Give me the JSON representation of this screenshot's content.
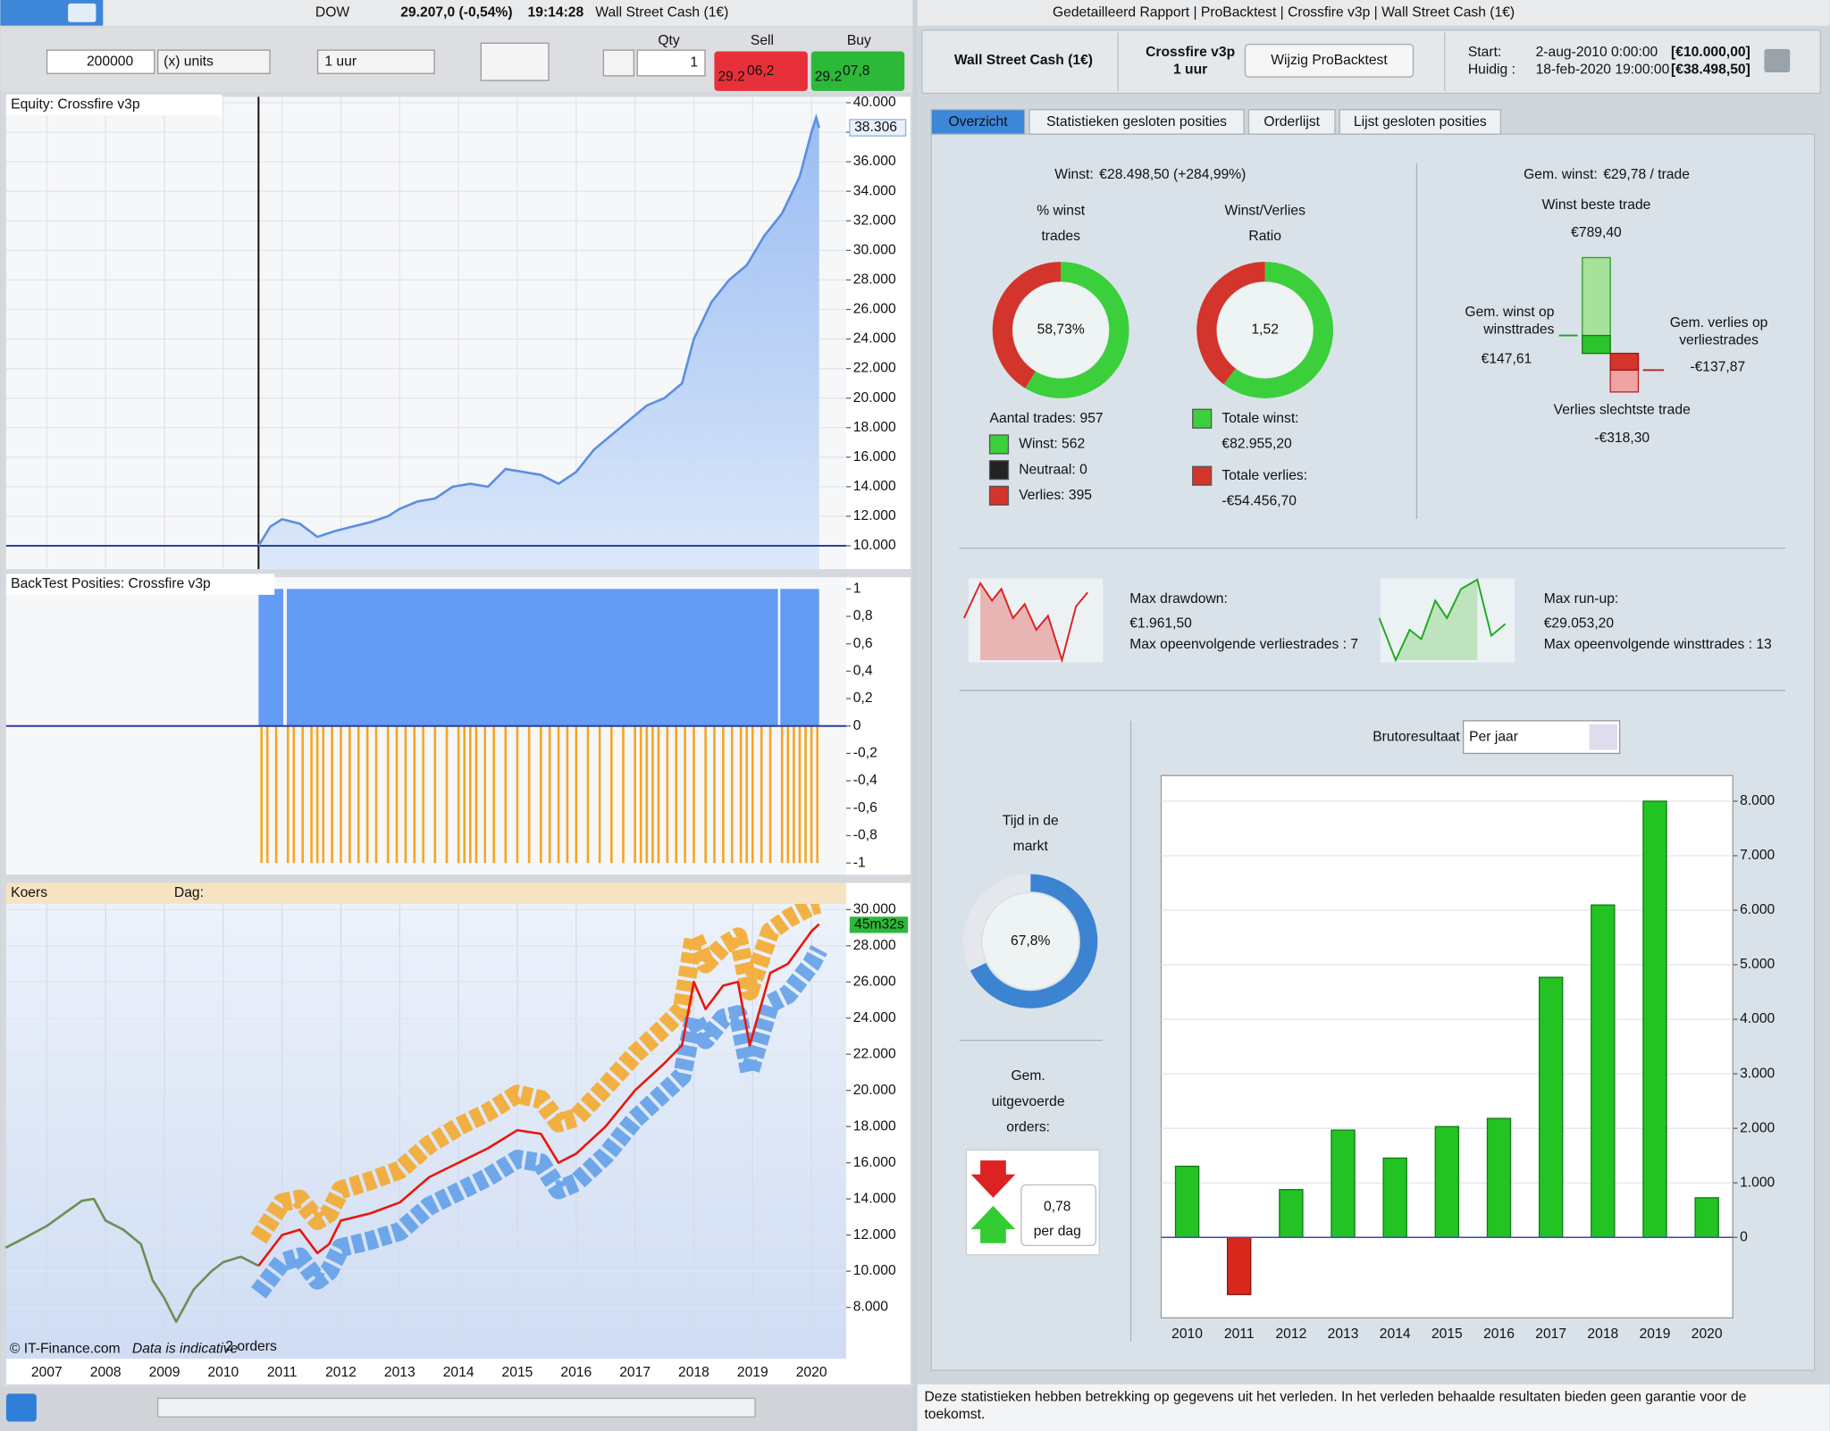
{
  "toolbar": {
    "instrument": "DOW",
    "price": "29.207,0 (-0,54%)",
    "time": "19:14:28",
    "market": "Wall Street Cash (1€)",
    "units": "200000",
    "units_mode": "(x) units",
    "timeframe": "1 uur",
    "qty_label": "Qty",
    "qty": "1",
    "sell_label": "Sell",
    "buy_label": "Buy",
    "sell_small": "29.2",
    "sell_price": "06,2",
    "buy_small": "29.2",
    "buy_price": "07,8"
  },
  "chart_data": [
    {
      "type": "area",
      "title": "Equity: Crossfire v3p",
      "x": [
        2010.6,
        2010.8,
        2011.0,
        2011.3,
        2011.6,
        2011.9,
        2012.2,
        2012.5,
        2012.8,
        2013.0,
        2013.3,
        2013.6,
        2013.9,
        2014.2,
        2014.5,
        2014.8,
        2015.1,
        2015.4,
        2015.7,
        2016.0,
        2016.3,
        2016.6,
        2016.9,
        2017.2,
        2017.5,
        2017.8,
        2018.0,
        2018.3,
        2018.6,
        2018.9,
        2019.2,
        2019.5,
        2019.8,
        2020.0,
        2020.08,
        2020.13
      ],
      "values": [
        10000,
        11300,
        11800,
        11500,
        10600,
        11000,
        11300,
        11600,
        12000,
        12500,
        13000,
        13200,
        14000,
        14200,
        14000,
        15200,
        15000,
        14800,
        14200,
        15000,
        16500,
        17500,
        18500,
        19500,
        20000,
        21000,
        24000,
        26500,
        28000,
        29000,
        31000,
        32500,
        35000,
        38000,
        39000,
        38306
      ],
      "last_value_label": "38.306",
      "color": "#5b8fe0",
      "xlim": [
        2006.31,
        2020.59
      ],
      "ylim": [
        8420,
        40400
      ],
      "yticks": [
        {
          "value": 10000,
          "label": "10.000"
        },
        {
          "value": 12000,
          "label": "12.000"
        },
        {
          "value": 14000,
          "label": "14.000"
        },
        {
          "value": 16000,
          "label": "16.000"
        },
        {
          "value": 18000,
          "label": "18.000"
        },
        {
          "value": 20000,
          "label": "20.000"
        },
        {
          "value": 22000,
          "label": "22.000"
        },
        {
          "value": 24000,
          "label": "24.000"
        },
        {
          "value": 26000,
          "label": "26.000"
        },
        {
          "value": 28000,
          "label": "28.000"
        },
        {
          "value": 30000,
          "label": "30.000"
        },
        {
          "value": 32000,
          "label": "32.000"
        },
        {
          "value": 34000,
          "label": "34.000"
        },
        {
          "value": 36000,
          "label": "36.000"
        },
        {
          "value": 38000,
          "label": "38.000"
        },
        {
          "value": 40000,
          "label": "40.000"
        }
      ]
    },
    {
      "type": "positions",
      "title": "BackTest Posities: Crossfire v3p",
      "long": [
        [
          2010.6,
          2011.02
        ],
        [
          2011.08,
          2019.43
        ],
        [
          2019.47,
          2020.13
        ]
      ],
      "long_value": 1,
      "long_color": "#649bf5",
      "short_x": [
        2010.65,
        2010.75,
        2010.9,
        2011.1,
        2011.2,
        2011.35,
        2011.5,
        2011.6,
        2011.7,
        2011.85,
        2012.0,
        2012.15,
        2012.3,
        2012.45,
        2012.6,
        2012.8,
        2012.95,
        2013.1,
        2013.25,
        2013.4,
        2013.6,
        2013.8,
        2014.0,
        2014.1,
        2014.2,
        2014.3,
        2014.45,
        2014.6,
        2014.8,
        2015.0,
        2015.2,
        2015.4,
        2015.55,
        2015.7,
        2015.85,
        2016.0,
        2016.2,
        2016.4,
        2016.6,
        2016.8,
        2017.0,
        2017.1,
        2017.2,
        2017.3,
        2017.4,
        2017.55,
        2017.7,
        2017.85,
        2018.0,
        2018.2,
        2018.35,
        2018.5,
        2018.65,
        2018.8,
        2018.9,
        2019.0,
        2019.15,
        2019.3,
        2019.5,
        2019.6,
        2019.7,
        2019.8,
        2019.9,
        2020.0,
        2020.1
      ],
      "short_value": -1,
      "short_color": "#f5a623",
      "xlim": [
        2006.31,
        2020.59
      ],
      "ylim": [
        -1.085,
        1.085
      ],
      "yticks": [
        1,
        {
          "value": 0.8,
          "label": "0,8"
        },
        {
          "value": 0.6,
          "label": "0,6"
        },
        {
          "value": 0.4,
          "label": "0,4"
        },
        {
          "value": 0.2,
          "label": "0,2"
        },
        0,
        {
          "value": -0.2,
          "label": "-0,2"
        },
        {
          "value": -0.4,
          "label": "-0,4"
        },
        {
          "value": -0.6,
          "label": "-0,6"
        },
        {
          "value": -0.8,
          "label": "-0,8"
        },
        -1
      ]
    },
    {
      "type": "line",
      "title": "Koers",
      "day_label": "Dag:",
      "timer": "45m32s",
      "copyright": "© IT-Finance.com",
      "disclaimer": "Data is indicative",
      "orders": "2 orders",
      "x": [
        2006.3,
        2006.6,
        2007.0,
        2007.3,
        2007.6,
        2007.8,
        2008.0,
        2008.3,
        2008.6,
        2008.8,
        2009.0,
        2009.2,
        2009.5,
        2009.8,
        2010.0,
        2010.3,
        2010.6,
        2011.0,
        2011.3,
        2011.6,
        2011.8,
        2012.0,
        2012.5,
        2013.0,
        2013.5,
        2014.0,
        2014.5,
        2015.0,
        2015.4,
        2015.7,
        2016.0,
        2016.5,
        2017.0,
        2017.5,
        2017.8,
        2018.0,
        2018.2,
        2018.5,
        2018.75,
        2018.95,
        2019.3,
        2019.6,
        2020.0,
        2020.13
      ],
      "series": [
        {
          "color": "#f5a623",
          "values": [
            null,
            null,
            null,
            null,
            null,
            null,
            null,
            null,
            null,
            null,
            null,
            null,
            null,
            null,
            null,
            null,
            11800,
            13800,
            14000,
            12800,
            13200,
            14500,
            15000,
            15600,
            17000,
            18000,
            18800,
            19800,
            19500,
            18200,
            18500,
            20200,
            22000,
            23500,
            24500,
            28500,
            27000,
            28000,
            28500,
            25500,
            28800,
            29500,
            30200,
            30300
          ]
        },
        {
          "color": "#5b9be8",
          "values": [
            null,
            null,
            null,
            null,
            null,
            null,
            null,
            null,
            null,
            null,
            null,
            null,
            null,
            null,
            null,
            null,
            8800,
            10500,
            10800,
            9500,
            10000,
            11300,
            11700,
            12200,
            13600,
            14400,
            15200,
            16200,
            16000,
            14500,
            14900,
            16400,
            18400,
            19900,
            20800,
            24000,
            22800,
            24000,
            24200,
            21000,
            24800,
            25300,
            27000,
            27800
          ]
        },
        {
          "color": "#6a8f55",
          "values": [
            11300,
            11800,
            12500,
            13200,
            13900,
            14000,
            12800,
            12300,
            11500,
            9500,
            8500,
            7200,
            9000,
            10000,
            10500,
            10800,
            10300,
            null,
            null,
            null,
            null,
            null,
            null,
            null,
            null,
            null,
            null,
            null,
            null,
            null,
            null,
            null,
            null,
            null,
            null,
            null,
            null,
            null,
            null,
            null,
            null,
            null,
            null,
            null
          ]
        },
        {
          "color": "#e8170c",
          "values": [
            null,
            null,
            null,
            null,
            null,
            null,
            null,
            null,
            null,
            null,
            null,
            null,
            null,
            null,
            null,
            null,
            10300,
            12000,
            12300,
            11000,
            11500,
            12800,
            13200,
            13800,
            15200,
            16000,
            16800,
            17800,
            17600,
            16000,
            16500,
            18000,
            20000,
            21500,
            22500,
            26000,
            24500,
            25800,
            26000,
            22500,
            26500,
            27000,
            28800,
            29200
          ]
        }
      ],
      "xlim": [
        2006.31,
        2020.59
      ],
      "ylim": [
        5161,
        30320
      ],
      "xticks": [
        2007,
        2008,
        2009,
        2010,
        2011,
        2012,
        2013,
        2014,
        2015,
        2016,
        2017,
        2018,
        2019,
        2020
      ],
      "yticks": [
        {
          "value": 8000,
          "label": "8.000"
        },
        {
          "value": 10000,
          "label": "10.000"
        },
        {
          "value": 12000,
          "label": "12.000"
        },
        {
          "value": 14000,
          "label": "14.000"
        },
        {
          "value": 16000,
          "label": "16.000"
        },
        {
          "value": 18000,
          "label": "18.000"
        },
        {
          "value": 20000,
          "label": "20.000"
        },
        {
          "value": 22000,
          "label": "22.000"
        },
        {
          "value": 24000,
          "label": "24.000"
        },
        {
          "value": 26000,
          "label": "26.000"
        },
        {
          "value": 28000,
          "label": "28.000"
        },
        {
          "value": 30000,
          "label": "30.000"
        }
      ]
    },
    {
      "type": "bar",
      "title": "Brutoresultaat",
      "period": "Per jaar",
      "categories": [
        "2010",
        "2011",
        "2012",
        "2013",
        "2014",
        "2015",
        "2016",
        "2017",
        "2018",
        "2019",
        "2020"
      ],
      "values": [
        1305,
        -1048,
        877,
        1968,
        1455,
        2032,
        2182,
        4770,
        6096,
        8000,
        727
      ],
      "color": "#22c322",
      "negative_color": "#d8281e",
      "ylim": [
        -1476,
        8470
      ],
      "yticks": [
        0,
        {
          "value": 1000,
          "label": "1.000"
        },
        {
          "value": 2000,
          "label": "2.000"
        },
        {
          "value": 3000,
          "label": "3.000"
        },
        {
          "value": 4000,
          "label": "4.000"
        },
        {
          "value": 5000,
          "label": "5.000"
        },
        {
          "value": 6000,
          "label": "6.000"
        },
        {
          "value": 7000,
          "label": "7.000"
        },
        {
          "value": 8000,
          "label": "8.000"
        }
      ]
    }
  ],
  "report": {
    "window_title": "Gedetailleerd Rapport | ProBacktest | Crossfire v3p | Wall Street Cash (1€)",
    "market": "Wall Street Cash (1€)",
    "system": "Crossfire v3p",
    "timeframe": "1 uur",
    "edit_button": "Wijzig ProBacktest",
    "start_label": "Start:",
    "start_date": "2-aug-2010 0:00:00",
    "start_capital": "[€10.000,00]",
    "current_label": "Huidig :",
    "current_date": "18-feb-2020 19:00:00",
    "current_capital": "[€38.498,50]",
    "tabs": [
      "Overzicht",
      "Statistieken gesloten posities",
      "Orderlijst",
      "Lijst gesloten posities"
    ],
    "profit_label": "Winst:",
    "profit": "€28.498,50 (+284,99%)",
    "win_pct_title": [
      "% winst",
      "trades"
    ],
    "win_pct": {
      "value": 58.73,
      "label": "58,73%"
    },
    "ratio_title": [
      "Winst/Verlies",
      "Ratio"
    ],
    "ratio": "1,52",
    "trades": "Aantal trades: 957",
    "wins": "Winst: 562",
    "neutral": "Neutraal: 0",
    "losses": "Verlies: 395",
    "total_win_label": "Totale winst:",
    "total_win": {
      "value": 82955.2,
      "label": "€82.955,20"
    },
    "total_loss_label": "Totale verlies:",
    "total_loss": {
      "value": -54456.7,
      "label": "-€54.456,70"
    },
    "avg_label": "Gem. winst:",
    "avg": "€29,78 / trade",
    "best_label": "Winst beste trade",
    "best": {
      "value": 789.4,
      "label": "€789,40"
    },
    "avg_win_label": [
      "Gem. winst op",
      "winsttrades"
    ],
    "avg_win": {
      "value": 147.61,
      "label": "€147,61"
    },
    "avg_loss_label": [
      "Gem. verlies op",
      "verliestrades"
    ],
    "avg_loss": {
      "value": -137.87,
      "label": "-€137,87"
    },
    "worst_label": "Verlies slechtste trade",
    "worst": {
      "value": -318.3,
      "label": "-€318,30"
    },
    "drawdown_label": "Max drawdown:",
    "drawdown": "€1.961,50",
    "drawdown_note": "Max opeenvolgende verliestrades : 7",
    "runup_label": "Max run-up:",
    "runup": "€29.053,20",
    "runup_note": "Max opeenvolgende winsttrades : 13",
    "market_time_title": [
      "Tijd in de",
      "markt"
    ],
    "market_time": {
      "value": 67.8,
      "label": "67,8%"
    },
    "orders_title": [
      "Gem.",
      "uitgevoerde",
      "orders:"
    ],
    "orders": "0,78",
    "orders_unit": "per dag",
    "footer": [
      "Deze statistieken hebben betrekking op gegevens uit het verleden. In het verleden behaalde resultaten bieden geen garantie voor de",
      "toekomst."
    ]
  }
}
